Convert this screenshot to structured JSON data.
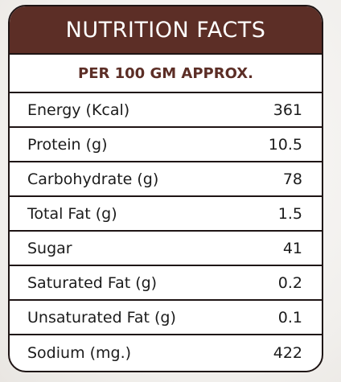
{
  "header": {
    "title": "NUTRITION FACTS",
    "subtitle": "PER 100 GM APPROX."
  },
  "rows": [
    {
      "label": "Energy (Kcal)",
      "value": "361"
    },
    {
      "label": "Protein (g)",
      "value": "10.5"
    },
    {
      "label": "Carbohydrate (g)",
      "value": "78"
    },
    {
      "label": "Total Fat (g)",
      "value": "1.5"
    },
    {
      "label": "Sugar",
      "value": "41"
    },
    {
      "label": "Saturated Fat (g)",
      "value": "0.2"
    },
    {
      "label": "Unsaturated Fat (g)",
      "value": "0.1"
    },
    {
      "label": "Sodium (mg.)",
      "value": "422"
    }
  ],
  "colors": {
    "header_bg": "#5c2e26",
    "subtitle_text": "#5c2e26",
    "border": "#1e1414"
  }
}
